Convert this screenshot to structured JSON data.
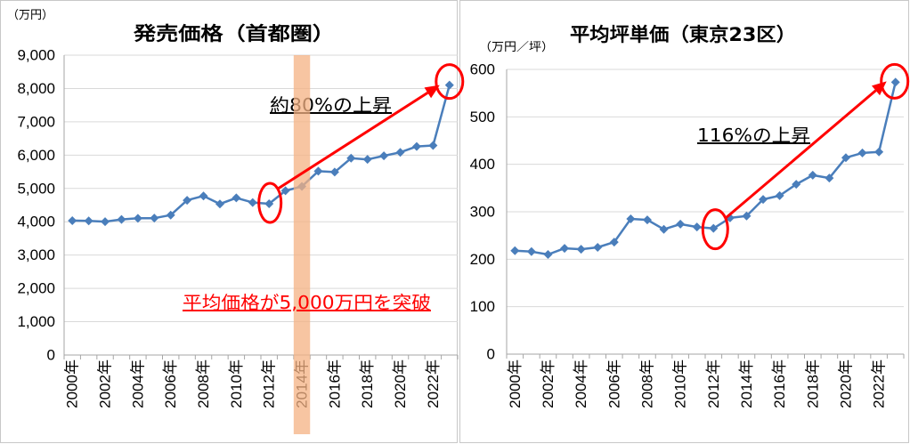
{
  "chart_data": [
    {
      "type": "line",
      "title": "発売価格（首都圏）",
      "unit_label": "（万円）",
      "x": [
        2000,
        2001,
        2002,
        2003,
        2004,
        2005,
        2006,
        2007,
        2008,
        2009,
        2010,
        2011,
        2012,
        2013,
        2014,
        2015,
        2016,
        2017,
        2018,
        2019,
        2020,
        2021,
        2022,
        2023
      ],
      "x_tick_labels": [
        "2000年",
        "2002年",
        "2004年",
        "2006年",
        "2008年",
        "2010年",
        "2012年",
        "2014年",
        "2016年",
        "2018年",
        "2020年",
        "2022年"
      ],
      "values": [
        4034,
        4026,
        4003,
        4069,
        4104,
        4108,
        4200,
        4644,
        4775,
        4535,
        4716,
        4578,
        4540,
        4929,
        5060,
        5518,
        5490,
        5908,
        5871,
        5980,
        6083,
        6260,
        6288,
        8101
      ],
      "ylim": [
        0,
        9000
      ],
      "y_tick_labels": [
        "0",
        "1,000",
        "2,000",
        "3,000",
        "4,000",
        "5,000",
        "6,000",
        "7,000",
        "8,000",
        "9,000"
      ],
      "grid": true,
      "marker": "diamond",
      "line_color": "#4a7ebb",
      "highlight": {
        "x": 2014,
        "color": "#f4b183"
      },
      "annotations": {
        "growth_text": "約80%の上昇",
        "note_text": "平均価格が5,000万円を突破",
        "note_color": "#ff0000",
        "color": "#ff0000",
        "arrow": {
          "from_x": 2012,
          "to_x": 2023
        },
        "circled_x": [
          2012,
          2023
        ]
      }
    },
    {
      "type": "line",
      "title": "平均坪単価（東京23区）",
      "unit_label": "（万円／坪）",
      "x": [
        2000,
        2001,
        2002,
        2003,
        2004,
        2005,
        2006,
        2007,
        2008,
        2009,
        2010,
        2011,
        2012,
        2013,
        2014,
        2015,
        2016,
        2017,
        2018,
        2019,
        2020,
        2021,
        2022,
        2023
      ],
      "x_tick_labels": [
        "2000年",
        "2002年",
        "2004年",
        "2006年",
        "2008年",
        "2010年",
        "2012年",
        "2014年",
        "2016年",
        "2018年",
        "2020年",
        "2022年"
      ],
      "values": [
        218,
        216,
        210,
        223,
        221,
        225,
        236,
        285,
        283,
        263,
        274,
        268,
        265,
        287,
        291,
        326,
        334,
        358,
        377,
        371,
        414,
        424,
        426,
        573
      ],
      "ylim": [
        0,
        600
      ],
      "y_tick_labels": [
        "0",
        "100",
        "200",
        "300",
        "400",
        "500",
        "600"
      ],
      "grid": true,
      "marker": "diamond",
      "line_color": "#4a7ebb",
      "annotations": {
        "growth_text": "116%の上昇",
        "color": "#ff0000",
        "arrow": {
          "from_x": 2012,
          "to_x": 2023
        },
        "circled_x": [
          2012,
          2023
        ]
      }
    }
  ]
}
